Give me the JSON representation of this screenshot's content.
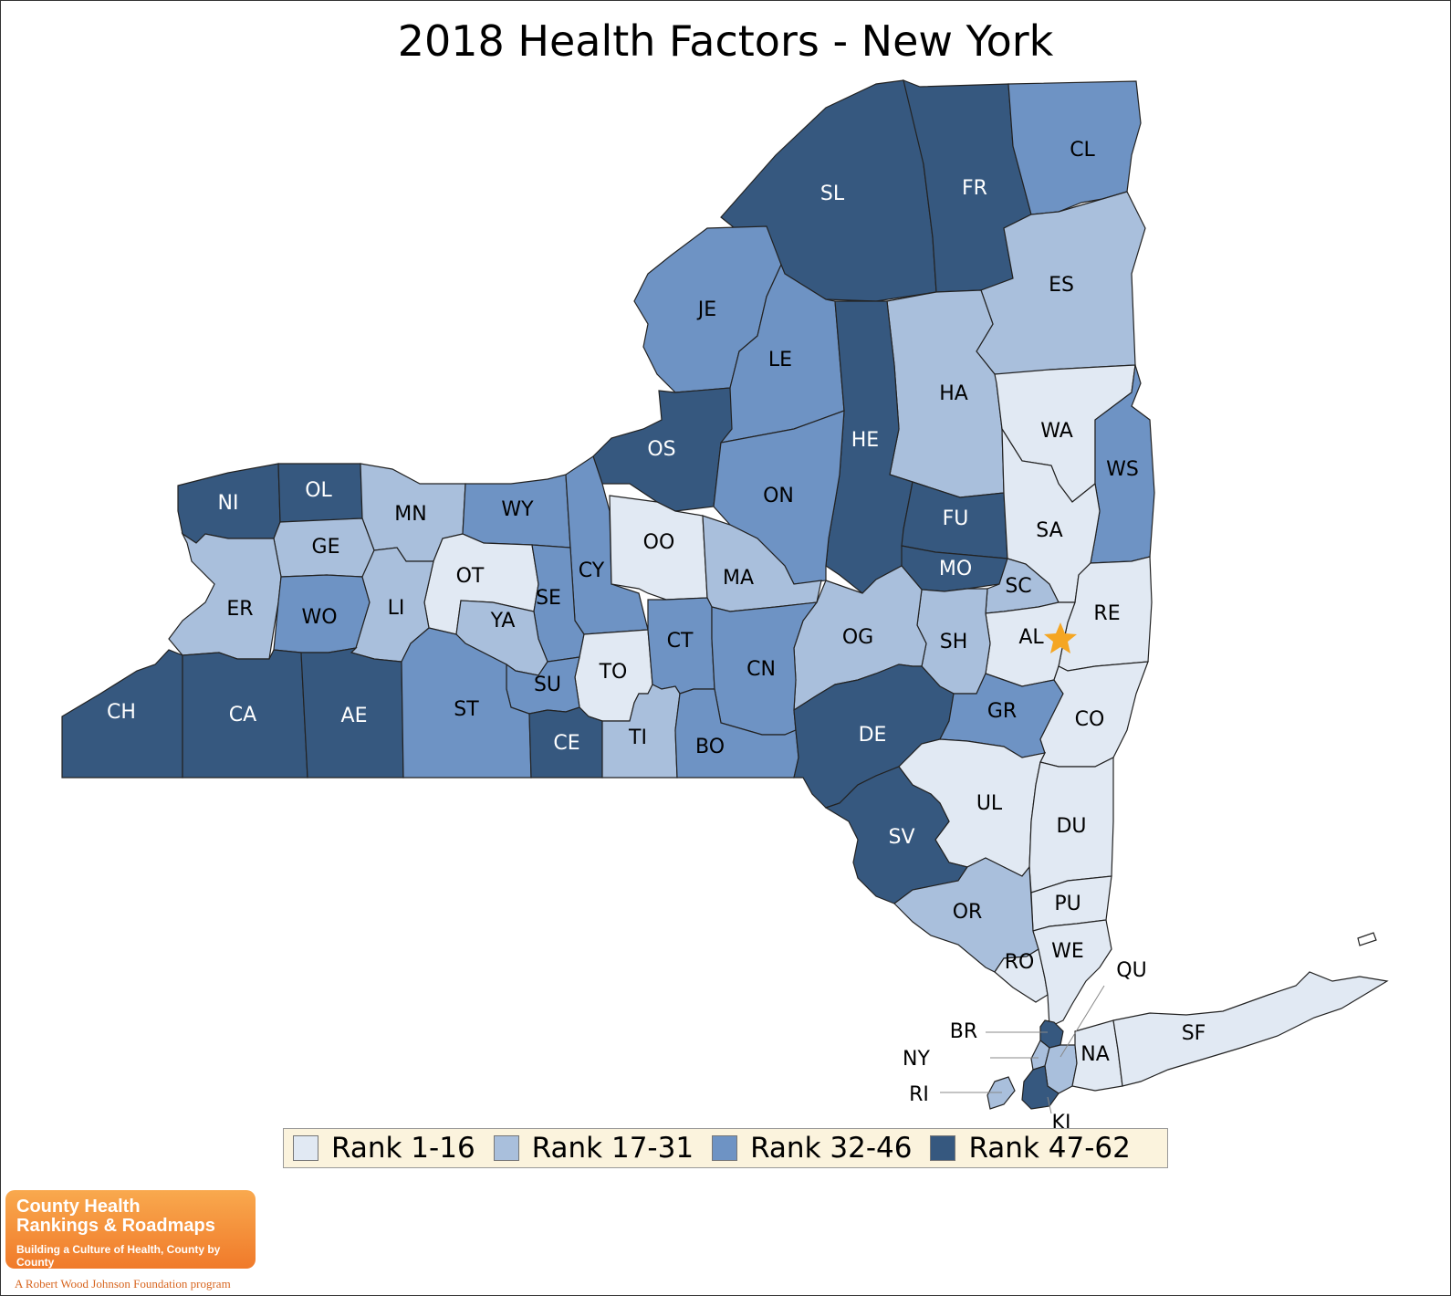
{
  "title": "2018 Health Factors - New York",
  "colors": {
    "r1": "#e1e9f3",
    "r2": "#a9bfdc",
    "r3": "#6e93c4",
    "r4": "#36587f",
    "star": "#f5a623"
  },
  "legend": [
    {
      "label": "Rank 1-16",
      "color": "#e1e9f3"
    },
    {
      "label": "Rank 17-31",
      "color": "#a9bfdc"
    },
    {
      "label": "Rank 32-46",
      "color": "#6e93c4"
    },
    {
      "label": "Rank 47-62",
      "color": "#36587f"
    }
  ],
  "counties": [
    {
      "abbr": "SL",
      "rank": "r4"
    },
    {
      "abbr": "FR",
      "rank": "r4"
    },
    {
      "abbr": "CL",
      "rank": "r3"
    },
    {
      "abbr": "ES",
      "rank": "r2"
    },
    {
      "abbr": "JE",
      "rank": "r3"
    },
    {
      "abbr": "LE",
      "rank": "r3"
    },
    {
      "abbr": "HA",
      "rank": "r2"
    },
    {
      "abbr": "HE",
      "rank": "r4"
    },
    {
      "abbr": "WA",
      "rank": "r1"
    },
    {
      "abbr": "WS",
      "rank": "r3"
    },
    {
      "abbr": "OS",
      "rank": "r4"
    },
    {
      "abbr": "ON",
      "rank": "r3"
    },
    {
      "abbr": "FU",
      "rank": "r4"
    },
    {
      "abbr": "SA",
      "rank": "r1"
    },
    {
      "abbr": "NI",
      "rank": "r4"
    },
    {
      "abbr": "OL",
      "rank": "r4"
    },
    {
      "abbr": "MN",
      "rank": "r2"
    },
    {
      "abbr": "WY",
      "rank": "r3"
    },
    {
      "abbr": "CY",
      "rank": "r3"
    },
    {
      "abbr": "OO",
      "rank": "r1"
    },
    {
      "abbr": "MA",
      "rank": "r2"
    },
    {
      "abbr": "MO",
      "rank": "r4"
    },
    {
      "abbr": "SC",
      "rank": "r2"
    },
    {
      "abbr": "GE",
      "rank": "r2"
    },
    {
      "abbr": "OT",
      "rank": "r1"
    },
    {
      "abbr": "SE",
      "rank": "r3"
    },
    {
      "abbr": "ER",
      "rank": "r2"
    },
    {
      "abbr": "WO",
      "rank": "r3"
    },
    {
      "abbr": "LI",
      "rank": "r2"
    },
    {
      "abbr": "YA",
      "rank": "r2"
    },
    {
      "abbr": "RE",
      "rank": "r1"
    },
    {
      "abbr": "AL",
      "rank": "r1"
    },
    {
      "abbr": "SH",
      "rank": "r2"
    },
    {
      "abbr": "OG",
      "rank": "r2"
    },
    {
      "abbr": "TO",
      "rank": "r1"
    },
    {
      "abbr": "CT",
      "rank": "r3"
    },
    {
      "abbr": "CN",
      "rank": "r3"
    },
    {
      "abbr": "SU",
      "rank": "r3"
    },
    {
      "abbr": "CH",
      "rank": "r4"
    },
    {
      "abbr": "CA",
      "rank": "r4"
    },
    {
      "abbr": "AE",
      "rank": "r4"
    },
    {
      "abbr": "ST",
      "rank": "r3"
    },
    {
      "abbr": "CE",
      "rank": "r4"
    },
    {
      "abbr": "TI",
      "rank": "r2"
    },
    {
      "abbr": "BO",
      "rank": "r3"
    },
    {
      "abbr": "DE",
      "rank": "r4"
    },
    {
      "abbr": "GR",
      "rank": "r3"
    },
    {
      "abbr": "CO",
      "rank": "r1"
    },
    {
      "abbr": "UL",
      "rank": "r1"
    },
    {
      "abbr": "DU",
      "rank": "r1"
    },
    {
      "abbr": "SV",
      "rank": "r4"
    },
    {
      "abbr": "PU",
      "rank": "r1"
    },
    {
      "abbr": "OR",
      "rank": "r2"
    },
    {
      "abbr": "RO",
      "rank": "r1"
    },
    {
      "abbr": "WE",
      "rank": "r1"
    },
    {
      "abbr": "QU",
      "rank": "r2"
    },
    {
      "abbr": "BR",
      "rank": "r4"
    },
    {
      "abbr": "NY",
      "rank": "r2"
    },
    {
      "abbr": "NA",
      "rank": "r1"
    },
    {
      "abbr": "SF",
      "rank": "r1"
    },
    {
      "abbr": "RI",
      "rank": "r2"
    },
    {
      "abbr": "KI",
      "rank": "r4"
    }
  ],
  "logo": {
    "line1": "County Health",
    "line2": "Rankings & Roadmaps",
    "line3": "Building a Culture of Health, County by County",
    "byline": "A Robert Wood Johnson Foundation program"
  }
}
